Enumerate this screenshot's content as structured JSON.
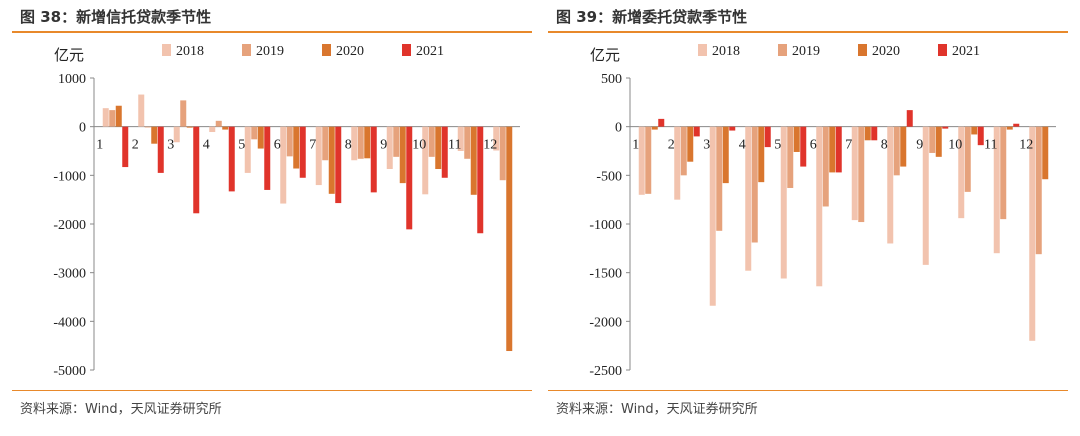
{
  "colors": {
    "s2018": "#f2c3ae",
    "s2019": "#e6a27c",
    "s2020": "#d9762e",
    "s2021": "#e0342b",
    "accent": "#e8892b"
  },
  "charts": [
    {
      "title": "图 38：新增信托贷款季节性",
      "source": "资料来源：Wind，天风证券研究所",
      "chart_data": {
        "type": "bar",
        "ylabel": "亿元",
        "ylim": [
          -5000,
          1000
        ],
        "yticks": [
          1000,
          0,
          -1000,
          -2000,
          -3000,
          -4000,
          -5000
        ],
        "categories": [
          "1",
          "2",
          "3",
          "4",
          "5",
          "6",
          "7",
          "8",
          "9",
          "10",
          "11",
          "12"
        ],
        "legend_position": "top",
        "series": [
          {
            "name": "2018",
            "values": [
              380,
              660,
              -320,
              -110,
              -950,
              -1580,
              -1200,
              -690,
              -870,
              -1390,
              -500,
              -490
            ]
          },
          {
            "name": "2019",
            "values": [
              340,
              -10,
              540,
              120,
              -260,
              -610,
              -690,
              -660,
              -620,
              -620,
              -660,
              -1100
            ]
          },
          {
            "name": "2020",
            "values": [
              430,
              -350,
              -20,
              -60,
              -450,
              -860,
              -1380,
              -650,
              -1160,
              -870,
              -1400,
              -4610
            ]
          },
          {
            "name": "2021",
            "values": [
              -830,
              -950,
              -1780,
              -1330,
              -1300,
              -1050,
              -1570,
              -1350,
              -2110,
              -1050,
              -2190,
              null
            ]
          }
        ]
      }
    },
    {
      "title": "图 39：新增委托贷款季节性",
      "source": "资料来源：Wind，天风证券研究所",
      "chart_data": {
        "type": "bar",
        "ylabel": "亿元",
        "ylim": [
          -2500,
          500
        ],
        "yticks": [
          500,
          0,
          -500,
          -1000,
          -1500,
          -2000,
          -2500
        ],
        "categories": [
          "1",
          "2",
          "3",
          "4",
          "5",
          "6",
          "7",
          "8",
          "9",
          "10",
          "11",
          "12"
        ],
        "legend_position": "top",
        "series": [
          {
            "name": "2018",
            "values": [
              -700,
              -750,
              -1840,
              -1480,
              -1560,
              -1640,
              -960,
              -1200,
              -1420,
              -940,
              -1300,
              -2200
            ]
          },
          {
            "name": "2019",
            "values": [
              -690,
              -500,
              -1070,
              -1190,
              -630,
              -820,
              -980,
              -500,
              -270,
              -670,
              -950,
              -1310
            ]
          },
          {
            "name": "2020",
            "values": [
              -30,
              -360,
              -580,
              -570,
              -260,
              -470,
              -140,
              -410,
              -310,
              -80,
              -30,
              -540
            ]
          },
          {
            "name": "2021",
            "values": [
              80,
              -100,
              -40,
              -210,
              -410,
              -470,
              -140,
              170,
              -20,
              -190,
              30,
              null
            ]
          }
        ]
      }
    }
  ]
}
